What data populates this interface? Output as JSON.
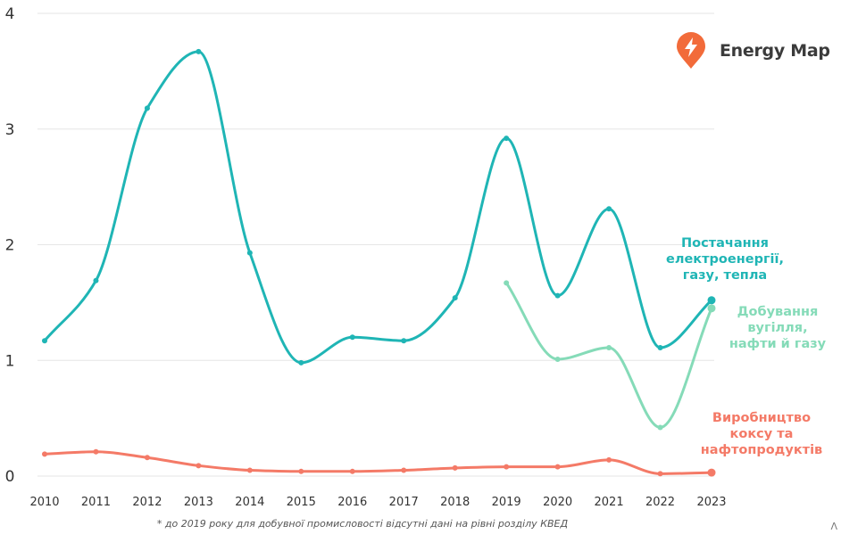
{
  "brand": {
    "name": "Energy Map",
    "icon": "lightning-pin-icon",
    "color": "#f26b3a"
  },
  "footnote": "* до 2019 року для добувної промисловості відсутні дані на рівні розділу КВЕД",
  "corner_mark": "Λ",
  "chart_data": {
    "type": "line",
    "x": [
      2010,
      2011,
      2012,
      2013,
      2014,
      2015,
      2016,
      2017,
      2018,
      2019,
      2020,
      2021,
      2022,
      2023
    ],
    "ylim": [
      0,
      4
    ],
    "yticks": [
      0,
      1,
      2,
      3,
      4
    ],
    "grid": true,
    "series": [
      {
        "name": "Постачання електроенергії, газу, тепла",
        "label_lines": [
          "Постачання",
          "електроенергії,",
          "газу, тепла"
        ],
        "color": "#1fb5b5",
        "values": [
          1.17,
          1.69,
          3.18,
          3.67,
          1.93,
          0.98,
          1.2,
          1.17,
          1.54,
          2.92,
          1.56,
          2.31,
          1.11,
          1.52
        ]
      },
      {
        "name": "Добування вугілля, нафти й газу",
        "label_lines": [
          "Добування",
          "вугілля,",
          "нафти й газу"
        ],
        "color": "#85dbb8",
        "values": [
          null,
          null,
          null,
          null,
          null,
          null,
          null,
          null,
          null,
          1.67,
          1.01,
          1.11,
          0.42,
          1.45
        ]
      },
      {
        "name": "Виробництво коксу та нафтопродуктів",
        "label_lines": [
          "Виробництво",
          "коксу та",
          "нафтопродуктів"
        ],
        "color": "#f47a67",
        "values": [
          0.19,
          0.21,
          0.16,
          0.09,
          0.05,
          0.04,
          0.04,
          0.05,
          0.07,
          0.08,
          0.08,
          0.14,
          0.02,
          0.03
        ]
      }
    ]
  }
}
